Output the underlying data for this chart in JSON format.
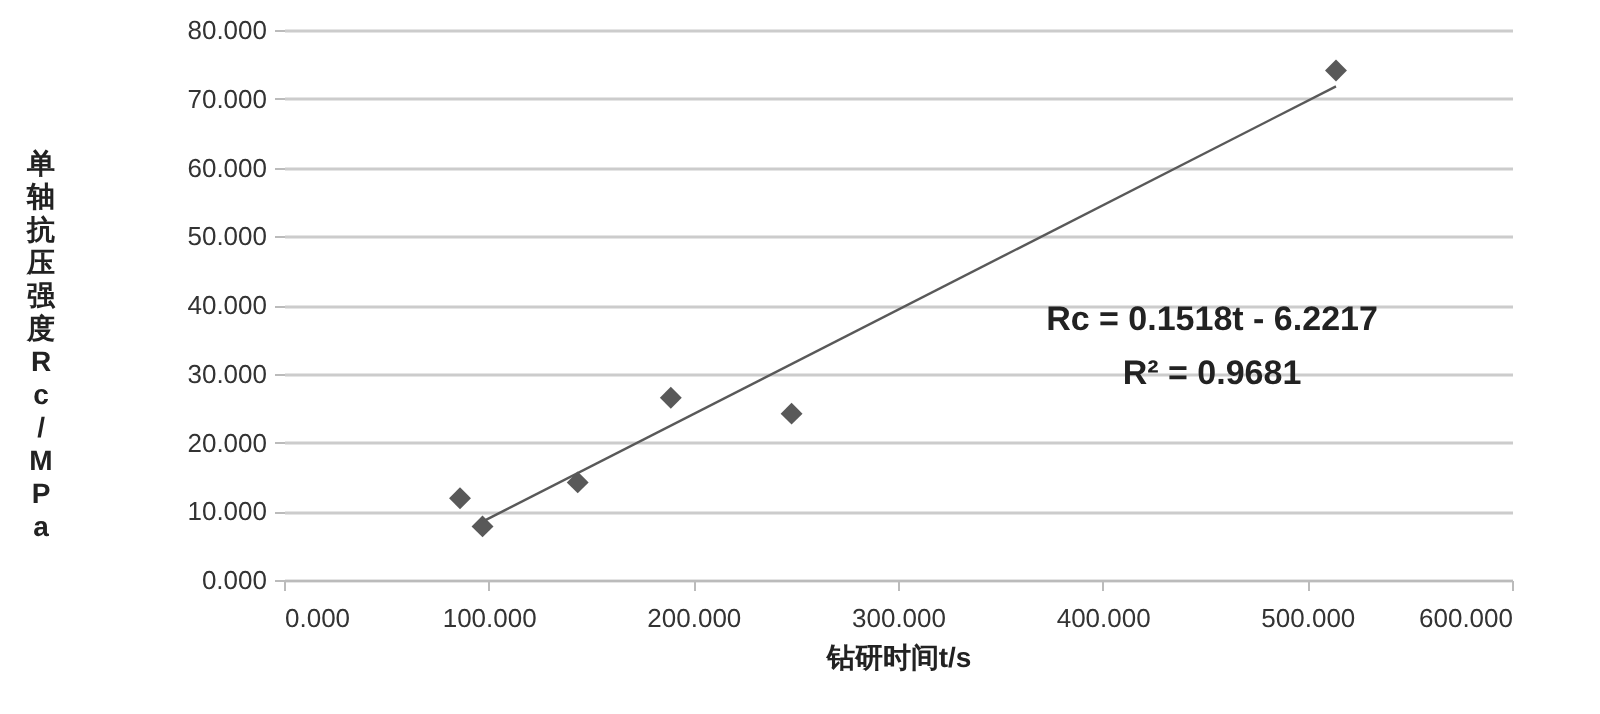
{
  "chart_data": {
    "type": "scatter",
    "xlabel": "钻研时间t/s",
    "ylabel": "单轴抗压强度Rc/MPa",
    "xlim": [
      0,
      600
    ],
    "xticks": [
      {
        "value": 0,
        "label": "0.000"
      },
      {
        "value": 100,
        "label": "100.000"
      },
      {
        "value": 200,
        "label": "200.000"
      },
      {
        "value": 300,
        "label": "300.000"
      },
      {
        "value": 400,
        "label": "400.000"
      },
      {
        "value": 500,
        "label": "500.000"
      },
      {
        "value": 600,
        "label": "600.000"
      }
    ],
    "ylim": [
      0,
      80
    ],
    "yticks": [
      {
        "value": 0,
        "label": "0.000"
      },
      {
        "value": 10,
        "label": "10.000"
      },
      {
        "value": 20,
        "label": "20.000"
      },
      {
        "value": 30,
        "label": "30.000"
      },
      {
        "value": 40,
        "label": "40.000"
      },
      {
        "value": 50,
        "label": "50.000"
      },
      {
        "value": 60,
        "label": "60.000"
      },
      {
        "value": 70,
        "label": "70.000"
      },
      {
        "value": 80,
        "label": "80.000"
      }
    ],
    "grid": "y",
    "series": [
      {
        "marker": "diamond",
        "color": "#595959",
        "x": [
          86,
          97,
          143.5,
          189,
          248,
          514
        ],
        "values": [
          11.9,
          7.8,
          14.2,
          26.5,
          24.2,
          74.1
        ]
      },
      {
        "type": "line",
        "color": "#595959",
        "x": [
          97,
          514
        ],
        "values": [
          8.5,
          71.8
        ]
      }
    ],
    "annotations": [
      "Rc = 0.1518t - 6.2217",
      "R² = 0.9681"
    ]
  }
}
